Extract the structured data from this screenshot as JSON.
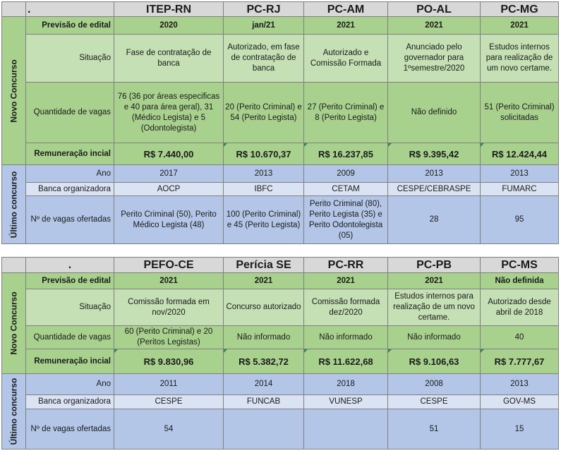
{
  "labels": {
    "corner": ".",
    "novo": "Novo Concurso",
    "ultimo": "Último concurso",
    "previsao": "Previsão de edital",
    "situacao": "Situação",
    "vagas": "Quantidade de vagas",
    "remuneracao": "Remuneração incial",
    "ano": "Ano",
    "banca": "Banca organizadora",
    "ofertadas": "Nº de vagas ofertadas"
  },
  "tables": [
    {
      "orgs": [
        "ITEP-RN",
        "PC-RJ",
        "PC-AM",
        "PO-AL",
        "PC-MG"
      ],
      "previsao": [
        "2020",
        "jan/21",
        "2021",
        "2021",
        "2021"
      ],
      "situacao": [
        "Fase de contratação de banca",
        "Autorizado, em fase de contratação de banca",
        "Autorizado e Comissão Formada",
        "Anunciado pelo governador para 1ºsemestre/2020",
        "Estudos internos para realização de um novo certame."
      ],
      "vagas": [
        "76 (36 por áreas especificas e 40 para área geral), 31 (Médico Legista) e 5 (Odontolegista)",
        "20 (Perito Criminal) e 54 (Perito Legista)",
        "27 (Perito Criminal) e        8 (Perito Legista)",
        "Não definido",
        "51 (Perito Criminal) solicitadas"
      ],
      "remuneracao": [
        "R$ 7.440,00",
        "R$ 10.670,37",
        "R$ 16.237,85",
        "R$ 9.395,42",
        "R$ 12.424,44"
      ],
      "ano": [
        "2017",
        "2013",
        "2009",
        "2013",
        "2013"
      ],
      "banca": [
        "AOCP",
        "IBFC",
        "CETAM",
        "CESPE/CEBRASPE",
        "FUMARC"
      ],
      "ofertadas": [
        "Perito Criminal (50), Perito Médico Legista (48)",
        "100 (Perito Criminal) e 45 (Perito Legista)",
        "Perito Criminal (80), Perito Legista (35) e Perito Odontolegista (05)",
        "28",
        "95"
      ]
    },
    {
      "orgs": [
        "PEFO-CE",
        "Perícia SE",
        "PC-RR",
        "PC-PB",
        "PC-MS"
      ],
      "previsao": [
        "2021",
        "2021",
        "2021",
        "2021",
        "Não definida"
      ],
      "situacao": [
        "Comissão formada em nov/2020",
        "Concurso autorizado",
        "Comissão formada dez/2020",
        "Estudos internos para realização de um novo certame.",
        "Autorizado desde abril de 2018"
      ],
      "vagas": [
        "60 (Perito Criminal) e 20 (Peritos Legistas)",
        "Não informado",
        "Não informado",
        "Não informado",
        "40"
      ],
      "remuneracao": [
        "R$ 9.830,96",
        "R$ 5.382,72",
        "R$ 11.622,68",
        "R$ 9.106,63",
        "R$ 7.777,67"
      ],
      "ano": [
        "2011",
        "2014",
        "2018",
        "2008",
        "2013"
      ],
      "banca": [
        "CESPE",
        "FUNCAB",
        "VUNESP",
        "CESPE",
        "GOV-MS"
      ],
      "ofertadas": [
        "54",
        "",
        "",
        "51",
        "15"
      ]
    }
  ]
}
